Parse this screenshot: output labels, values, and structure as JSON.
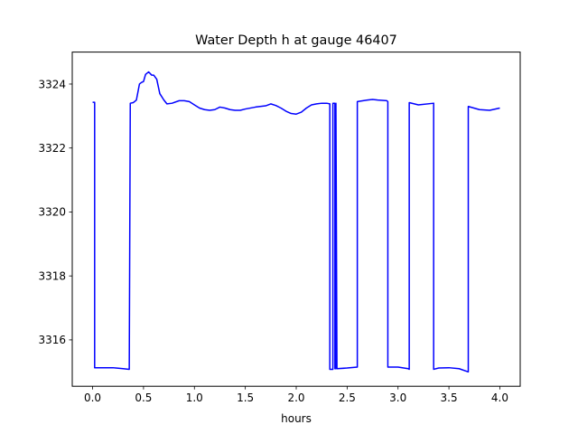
{
  "chart_data": {
    "type": "line",
    "title": "Water Depth h at gauge 46407",
    "xlabel": "hours",
    "ylabel": "",
    "xlim": [
      -0.2,
      4.2
    ],
    "ylim": [
      3314.55,
      3325.0
    ],
    "x_ticks": [
      0.0,
      0.5,
      1.0,
      1.5,
      2.0,
      2.5,
      3.0,
      3.5,
      4.0
    ],
    "x_tick_labels": [
      "0.0",
      "0.5",
      "1.0",
      "1.5",
      "2.0",
      "2.5",
      "3.0",
      "3.5",
      "4.0"
    ],
    "y_ticks": [
      3316,
      3318,
      3320,
      3322,
      3324
    ],
    "y_tick_labels": [
      "3316",
      "3318",
      "3320",
      "3322",
      "3324"
    ],
    "grid": false,
    "series": [
      {
        "color": "#0000ff",
        "x": [
          0.0,
          0.02,
          0.02,
          0.05,
          0.1,
          0.2,
          0.3,
          0.36,
          0.37,
          0.4,
          0.43,
          0.46,
          0.48,
          0.5,
          0.52,
          0.55,
          0.58,
          0.6,
          0.63,
          0.66,
          0.7,
          0.73,
          0.78,
          0.85,
          0.9,
          0.95,
          1.0,
          1.05,
          1.1,
          1.15,
          1.2,
          1.25,
          1.3,
          1.35,
          1.4,
          1.45,
          1.5,
          1.6,
          1.7,
          1.75,
          1.8,
          1.85,
          1.9,
          1.95,
          2.0,
          2.05,
          2.1,
          2.15,
          2.2,
          2.25,
          2.3,
          2.33,
          2.33,
          2.36,
          2.36,
          2.37,
          2.38,
          2.38,
          2.39,
          2.39,
          2.4,
          2.5,
          2.6,
          2.6,
          2.7,
          2.75,
          2.8,
          2.89,
          2.9,
          2.9,
          3.0,
          3.1,
          3.11,
          3.11,
          3.2,
          3.35,
          3.35,
          3.4,
          3.5,
          3.6,
          3.69,
          3.69,
          3.8,
          3.9,
          4.0
        ],
        "y": [
          3323.43,
          3323.43,
          3315.13,
          3315.13,
          3315.13,
          3315.13,
          3315.1,
          3315.08,
          3323.4,
          3323.42,
          3323.5,
          3324.0,
          3324.05,
          3324.08,
          3324.3,
          3324.38,
          3324.28,
          3324.28,
          3324.15,
          3323.7,
          3323.5,
          3323.38,
          3323.4,
          3323.48,
          3323.48,
          3323.45,
          3323.35,
          3323.25,
          3323.2,
          3323.18,
          3323.2,
          3323.28,
          3323.25,
          3323.2,
          3323.18,
          3323.18,
          3323.22,
          3323.28,
          3323.32,
          3323.38,
          3323.33,
          3323.25,
          3323.15,
          3323.08,
          3323.06,
          3323.12,
          3323.25,
          3323.35,
          3323.38,
          3323.4,
          3323.4,
          3323.38,
          3315.08,
          3315.08,
          3323.4,
          3323.4,
          3323.4,
          3315.1,
          3315.1,
          3323.4,
          3315.1,
          3315.12,
          3315.15,
          3323.45,
          3323.5,
          3323.52,
          3323.5,
          3323.48,
          3323.45,
          3315.15,
          3315.15,
          3315.1,
          3315.08,
          3323.42,
          3323.35,
          3323.4,
          3315.08,
          3315.12,
          3315.13,
          3315.1,
          3315.0,
          3323.3,
          3323.2,
          3323.18,
          3323.25
        ]
      }
    ]
  }
}
